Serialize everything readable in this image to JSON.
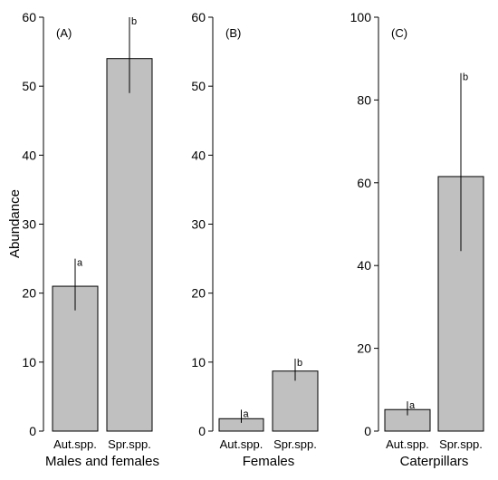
{
  "ylabel": "Abundance",
  "chart_data": [
    {
      "type": "bar",
      "panel": "(A)",
      "xlabel": "Males and females",
      "ylabel": "Abundance",
      "categories": [
        "Aut.spp.",
        "Spr.spp."
      ],
      "values": [
        21,
        54
      ],
      "error_low": [
        17.5,
        49
      ],
      "error_high": [
        25,
        60
      ],
      "significance": [
        "a",
        "b"
      ],
      "ylim": [
        0,
        60
      ],
      "yticks": [
        0,
        10,
        20,
        30,
        40,
        50,
        60
      ],
      "bar_color": "#c0c0c0"
    },
    {
      "type": "bar",
      "panel": "(B)",
      "xlabel": "Females",
      "categories": [
        "Aut.spp.",
        "Spr.spp."
      ],
      "values": [
        1.8,
        8.7
      ],
      "error_low": [
        1.2,
        7.3
      ],
      "error_high": [
        3.1,
        10.5
      ],
      "significance": [
        "a",
        "b"
      ],
      "ylim": [
        0,
        60
      ],
      "yticks": [
        0,
        10,
        20,
        30,
        40,
        50,
        60
      ],
      "bar_color": "#c0c0c0"
    },
    {
      "type": "bar",
      "panel": "(C)",
      "xlabel": "Caterpillars",
      "categories": [
        "Aut.spp.",
        "Spr.spp."
      ],
      "values": [
        5.2,
        61.5
      ],
      "error_low": [
        3.8,
        43.5
      ],
      "error_high": [
        7.2,
        86.5
      ],
      "significance": [
        "a",
        "b"
      ],
      "ylim": [
        0,
        100
      ],
      "yticks": [
        0,
        20,
        40,
        60,
        80,
        100
      ],
      "bar_color": "#c0c0c0"
    }
  ]
}
